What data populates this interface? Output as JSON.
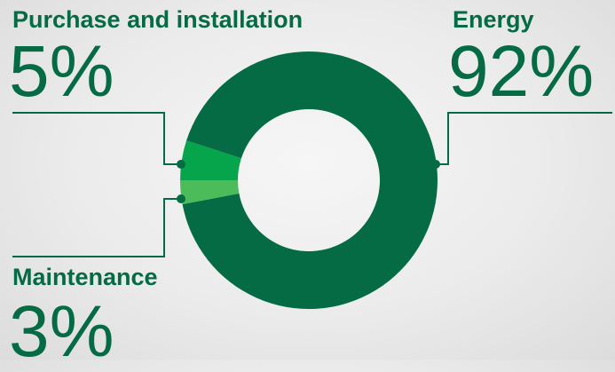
{
  "chart_data": {
    "type": "pie",
    "variant": "donut",
    "slices": [
      {
        "name": "Energy",
        "value": 92,
        "display": "92%",
        "color": "#046b45"
      },
      {
        "name": "Purchase and installation",
        "value": 5,
        "display": "5%",
        "color": "#06a54c"
      },
      {
        "name": "Maintenance",
        "value": 3,
        "display": "3%",
        "color": "#4cbc5a"
      }
    ]
  },
  "leader_color": "#046b45"
}
